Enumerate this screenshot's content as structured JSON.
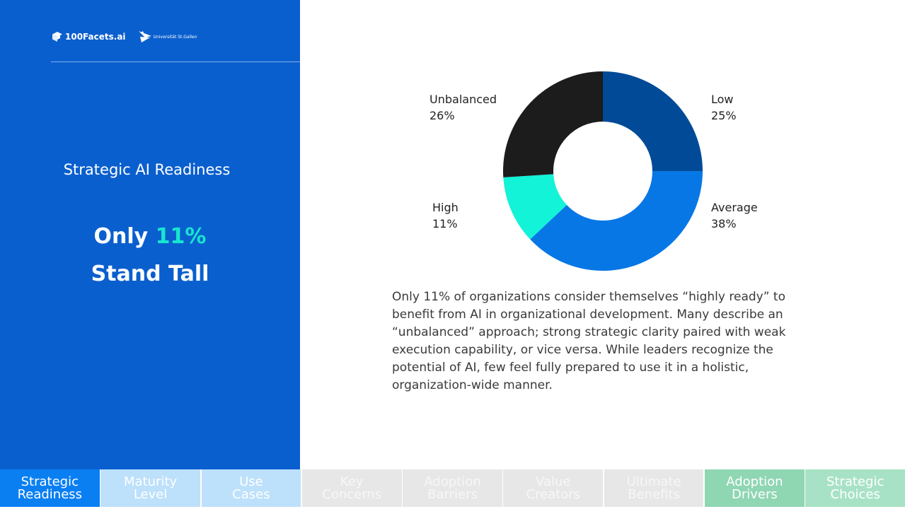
{
  "brand": {
    "logo_100facets": "100Facets.ai",
    "logo_university": "Universität St.Gallen"
  },
  "left": {
    "section_title": "Strategic AI Readiness",
    "headline_prefix": "Only ",
    "headline_accent": "11%",
    "headline_line2": "Stand Tall"
  },
  "chart_data": {
    "type": "pie",
    "style": "donut",
    "title": "",
    "slices": [
      {
        "label": "Low",
        "value": 25,
        "display": "25%",
        "color": "#004a97"
      },
      {
        "label": "Average",
        "value": 38,
        "display": "38%",
        "color": "#0877e6"
      },
      {
        "label": "High",
        "value": 11,
        "display": "11%",
        "color": "#12f3d8"
      },
      {
        "label": "Unbalanced",
        "value": 26,
        "display": "26%",
        "color": "#1c1c1c"
      }
    ]
  },
  "body_text": "Only 11% of organizations consider themselves “highly ready” to benefit from  AI in organizational development. Many describe an “unbalanced” approach; strong strategic clarity paired with weak execution capability, or vice versa. While leaders recognize the potential of AI, few feel fully prepared to use it in a holistic, organization-wide manner.",
  "nav": {
    "tabs": [
      {
        "line1": "Strategic",
        "line2": "Readiness",
        "bg": "#0a7ff2",
        "color": "#ffffff"
      },
      {
        "line1": "Maturity",
        "line2": "Level",
        "bg": "#bde0fb",
        "color": "#ffffff"
      },
      {
        "line1": "Use",
        "line2": "Cases",
        "bg": "#bde0fb",
        "color": "#ffffff"
      },
      {
        "line1": "Key",
        "line2": "Concerns",
        "bg": "#e7e7e7",
        "color": "#f7f7f7"
      },
      {
        "line1": "Adoption",
        "line2": "Barriers",
        "bg": "#e7e7e7",
        "color": "#f7f7f7"
      },
      {
        "line1": "Value",
        "line2": "Creators",
        "bg": "#e7e7e7",
        "color": "#f7f7f7"
      },
      {
        "line1": "Ultimate",
        "line2": "Benefits",
        "bg": "#e7e7e7",
        "color": "#f7f7f7"
      },
      {
        "line1": "Adoption",
        "line2": "Drivers",
        "bg": "#8fd6b3",
        "color": "#ffffff"
      },
      {
        "line1": "Strategic",
        "line2": "Choices",
        "bg": "#a8e2c6",
        "color": "#ffffff"
      }
    ]
  }
}
